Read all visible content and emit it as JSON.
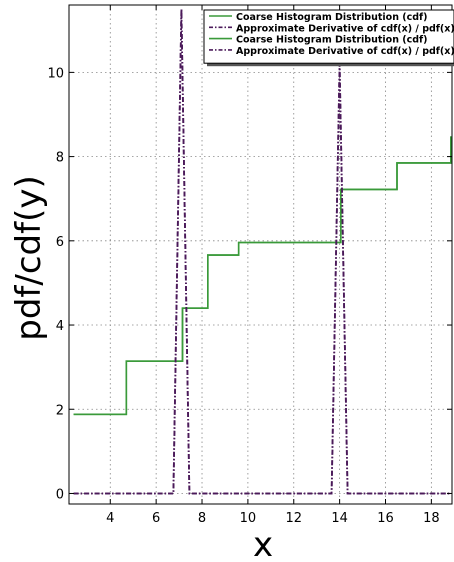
{
  "chart_data": {
    "type": "line",
    "title": "",
    "xlabel": "x",
    "ylabel": "pdf/cdf(y)",
    "xlim": [
      2.2,
      18.9
    ],
    "ylim": [
      -0.25,
      11.6
    ],
    "xticks": [
      4,
      6,
      8,
      10,
      12,
      14,
      16,
      18
    ],
    "yticks": [
      0,
      2,
      4,
      6,
      8,
      10
    ],
    "grid": true,
    "legend_position": "top-right",
    "series": [
      {
        "name": "Coarse Histogram Distribution (cdf)",
        "style": "solid",
        "color": "#3a9a3a",
        "x": [
          2.4,
          4.7,
          4.7,
          7.15,
          7.15,
          8.25,
          8.25,
          9.6,
          9.6,
          14.05,
          14.05,
          16.5,
          16.5,
          18.85,
          18.85
        ],
        "y": [
          1.88,
          1.88,
          3.14,
          3.14,
          4.4,
          4.4,
          5.66,
          5.66,
          5.96,
          5.96,
          7.22,
          7.22,
          7.85,
          7.85,
          8.48
        ]
      },
      {
        "name": "Approximate Derivative of cdf(x) / pdf(x)",
        "style": "dashdot",
        "color": "#4b1a5a",
        "x": [
          2.4,
          6.75,
          7.1,
          7.45,
          13.65,
          14.0,
          14.35,
          18.85
        ],
        "y": [
          0,
          0,
          11.5,
          0,
          0,
          10.2,
          0,
          0
        ]
      },
      {
        "name": "Coarse Histogram Distribution (cdf)",
        "style": "solid",
        "color": "#3a9a3a",
        "x": [
          2.4,
          4.7,
          4.7,
          7.15,
          7.15,
          8.25,
          8.25,
          9.6,
          9.6,
          14.05,
          14.05,
          16.5,
          16.5,
          18.85,
          18.85
        ],
        "y": [
          1.88,
          1.88,
          3.14,
          3.14,
          4.4,
          4.4,
          5.66,
          5.66,
          5.96,
          5.96,
          7.22,
          7.22,
          7.85,
          7.85,
          8.48
        ]
      },
      {
        "name": "Approximate Derivative of cdf(x) / pdf(x)",
        "style": "dashdot",
        "color": "#4b1a5a",
        "x": [
          2.4,
          6.75,
          7.1,
          7.45,
          13.65,
          14.0,
          14.35,
          18.85
        ],
        "y": [
          0,
          0,
          11.5,
          0,
          0,
          10.2,
          0,
          0
        ]
      }
    ]
  }
}
